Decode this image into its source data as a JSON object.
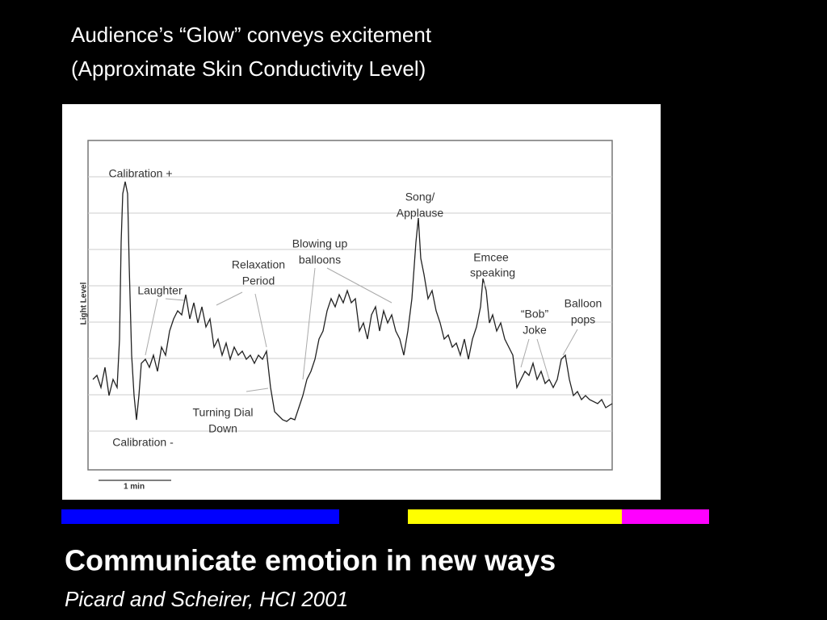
{
  "slide": {
    "title_lines": [
      "Audience’s “Glow” conveys excitement",
      "(Approximate Skin Conductivity Level)"
    ],
    "figure": {
      "y_axis_label": "Light Level",
      "scale_label": "1 min",
      "annotations": [
        "Calibration +",
        "Laughter",
        "Relaxation",
        "Period",
        "Blowing up",
        "balloons",
        "Song/",
        "Applause",
        "Emcee",
        "speaking",
        "“Bob”",
        "Joke",
        "Balloon",
        "pops",
        "Turning Dial",
        "Down",
        "Calibration -"
      ]
    },
    "heading": "Communicate emotion in new ways",
    "citation": "Picard and Scheirer, HCI 2001"
  }
}
